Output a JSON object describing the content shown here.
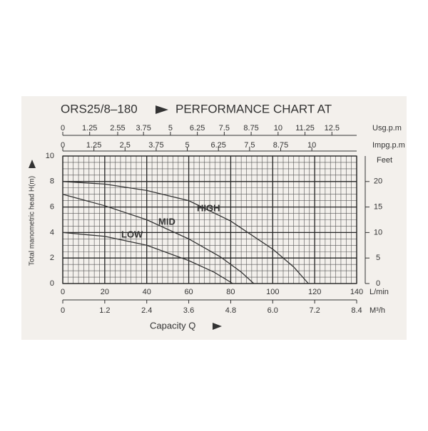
{
  "chart_data": {
    "type": "line",
    "title": {
      "model": "ORS25/8–180",
      "text": "PERFORMANCE CHART AT"
    },
    "y_label": "Total manometric head H(m)",
    "x_label": "Capacity Q",
    "xlim": [
      0,
      140
    ],
    "xticks": [
      0,
      20,
      40,
      60,
      80,
      100,
      120,
      140
    ],
    "x_unit": "L/min",
    "ylim": [
      0,
      10
    ],
    "yticks": [
      0,
      2,
      4,
      6,
      8,
      10
    ],
    "x2_axes": [
      {
        "unit": "M³/h",
        "lim": [
          0,
          8.4
        ],
        "ticks": [
          0,
          1.2,
          2.4,
          3.6,
          4.8,
          {
            "value": 6,
            "label": "6.0"
          },
          7.2,
          8.4
        ]
      },
      {
        "unit": "Usg.p.m",
        "lim": [
          0,
          13.65
        ],
        "ticks": [
          0,
          1.25,
          2.55,
          3.75,
          5,
          6.25,
          7.5,
          8.75,
          10,
          11.25,
          12.5
        ]
      },
      {
        "unit": "Impg.p.m",
        "lim": [
          0,
          11.8
        ],
        "ticks": [
          0,
          1.25,
          2.5,
          3.75,
          5,
          6.25,
          7.5,
          8.75,
          10
        ]
      }
    ],
    "y2_unit": "Feet",
    "y2lim": [
      0,
      25
    ],
    "y2ticks": [
      0,
      5,
      10,
      15,
      20
    ],
    "grid": true,
    "minor_grid": {
      "x": 2.5,
      "y": 0.5
    },
    "series": [
      {
        "name": "HIGH",
        "color": "#333333",
        "x": [
          0,
          20,
          40,
          60,
          80,
          100,
          110,
          117
        ],
        "values": [
          8,
          7.8,
          7.3,
          6.5,
          4.9,
          2.7,
          1.3,
          0
        ]
      },
      {
        "name": "MID",
        "color": "#333333",
        "x": [
          0,
          20,
          40,
          60,
          75,
          85,
          91
        ],
        "values": [
          7,
          6.1,
          5,
          3.5,
          2.1,
          0.9,
          0
        ]
      },
      {
        "name": "LOW",
        "color": "#333333",
        "x": [
          0,
          20,
          40,
          60,
          72,
          81
        ],
        "values": [
          4,
          3.7,
          3,
          1.8,
          0.9,
          0
        ]
      }
    ]
  }
}
